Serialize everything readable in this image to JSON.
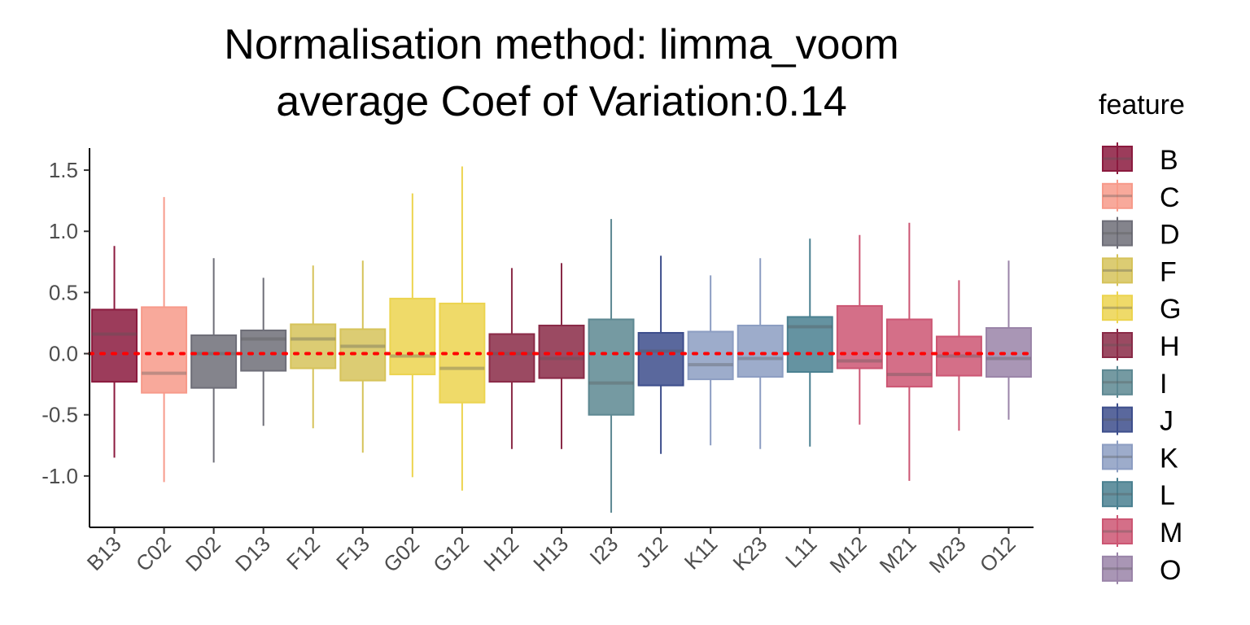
{
  "chart_data": {
    "type": "box",
    "title": "Normalisation method: limma_voom",
    "subtitle": "average Coef of Variation:0.14",
    "xlabel": "",
    "ylabel": "",
    "ylim": [
      -1.42,
      1.68
    ],
    "yticks": [
      1.5,
      1.0,
      0.5,
      0.0,
      -0.5,
      -1.0
    ],
    "ytick_labels": [
      "1.5",
      "1.0",
      "0.5",
      "0.0",
      "-0.5",
      "-1.0"
    ],
    "reference_line": {
      "y": 0.0,
      "color": "#ff0000",
      "style": "dotted"
    },
    "grid": false,
    "legend": {
      "title": "feature",
      "position": "right",
      "entries": [
        {
          "label": "B",
          "color": "#8b1a3e"
        },
        {
          "label": "C",
          "color": "#f79a8a"
        },
        {
          "label": "D",
          "color": "#6e6e78"
        },
        {
          "label": "F",
          "color": "#d6c35a"
        },
        {
          "label": "G",
          "color": "#ecd44f"
        },
        {
          "label": "H",
          "color": "#8a2a47"
        },
        {
          "label": "I",
          "color": "#5d8892"
        },
        {
          "label": "J",
          "color": "#3d4e8c"
        },
        {
          "label": "K",
          "color": "#8c9dc2"
        },
        {
          "label": "L",
          "color": "#4a8090"
        },
        {
          "label": "M",
          "color": "#cc5673"
        },
        {
          "label": "O",
          "color": "#9a84a8"
        }
      ]
    },
    "boxes": [
      {
        "category": "B13",
        "feature": "B",
        "min": -0.85,
        "q1": -0.23,
        "median": 0.16,
        "q3": 0.36,
        "max": 0.88
      },
      {
        "category": "C02",
        "feature": "C",
        "min": -1.05,
        "q1": -0.32,
        "median": -0.16,
        "q3": 0.38,
        "max": 1.28
      },
      {
        "category": "D02",
        "feature": "D",
        "min": -0.89,
        "q1": -0.28,
        "median": 0.0,
        "q3": 0.15,
        "max": 0.78
      },
      {
        "category": "D13",
        "feature": "D",
        "min": -0.59,
        "q1": -0.14,
        "median": 0.12,
        "q3": 0.19,
        "max": 0.62
      },
      {
        "category": "F12",
        "feature": "F",
        "min": -0.61,
        "q1": -0.12,
        "median": 0.12,
        "q3": 0.24,
        "max": 0.72
      },
      {
        "category": "F13",
        "feature": "F",
        "min": -0.81,
        "q1": -0.22,
        "median": 0.06,
        "q3": 0.2,
        "max": 0.76
      },
      {
        "category": "G02",
        "feature": "G",
        "min": -1.01,
        "q1": -0.17,
        "median": -0.02,
        "q3": 0.45,
        "max": 1.31
      },
      {
        "category": "G12",
        "feature": "G",
        "min": -1.12,
        "q1": -0.4,
        "median": -0.12,
        "q3": 0.41,
        "max": 1.53
      },
      {
        "category": "H12",
        "feature": "H",
        "min": -0.78,
        "q1": -0.23,
        "median": 0.0,
        "q3": 0.16,
        "max": 0.7
      },
      {
        "category": "H13",
        "feature": "H",
        "min": -0.78,
        "q1": -0.2,
        "median": -0.04,
        "q3": 0.23,
        "max": 0.74
      },
      {
        "category": "I23",
        "feature": "I",
        "min": -1.3,
        "q1": -0.5,
        "median": -0.24,
        "q3": 0.28,
        "max": 1.1
      },
      {
        "category": "J12",
        "feature": "J",
        "min": -0.82,
        "q1": -0.26,
        "median": 0.02,
        "q3": 0.17,
        "max": 0.8
      },
      {
        "category": "K11",
        "feature": "K",
        "min": -0.75,
        "q1": -0.21,
        "median": -0.09,
        "q3": 0.18,
        "max": 0.64
      },
      {
        "category": "K23",
        "feature": "K",
        "min": -0.78,
        "q1": -0.19,
        "median": -0.04,
        "q3": 0.23,
        "max": 0.78
      },
      {
        "category": "L11",
        "feature": "L",
        "min": -0.76,
        "q1": -0.15,
        "median": 0.22,
        "q3": 0.3,
        "max": 0.94
      },
      {
        "category": "M12",
        "feature": "M",
        "min": -0.58,
        "q1": -0.12,
        "median": -0.06,
        "q3": 0.39,
        "max": 0.97
      },
      {
        "category": "M21",
        "feature": "M",
        "min": -1.04,
        "q1": -0.27,
        "median": -0.17,
        "q3": 0.28,
        "max": 1.07
      },
      {
        "category": "M23",
        "feature": "M",
        "min": -0.63,
        "q1": -0.18,
        "median": -0.02,
        "q3": 0.14,
        "max": 0.6
      },
      {
        "category": "O12",
        "feature": "O",
        "min": -0.54,
        "q1": -0.19,
        "median": -0.04,
        "q3": 0.21,
        "max": 0.76
      }
    ]
  }
}
